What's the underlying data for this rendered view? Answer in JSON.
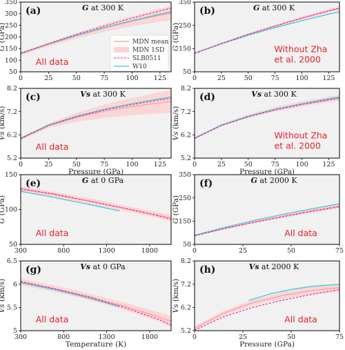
{
  "chart_data": [
    {
      "type": "line",
      "panel_label": "(a)",
      "title_var": "G",
      "title_rest": " at 300 K",
      "ylabel_var": "G",
      "ylabel_unit": " (GPa)",
      "xlabel": "",
      "xlim": [
        0,
        135
      ],
      "ylim": [
        50,
        350
      ],
      "xticks": [
        0,
        25,
        50,
        75,
        100,
        125
      ],
      "yticks": [
        50,
        100,
        150,
        200,
        250,
        300,
        350
      ],
      "annotation": [
        "All data"
      ],
      "series": [
        {
          "name": "MDN mean",
          "x": [
            0,
            25,
            50,
            75,
            100,
            125,
            135
          ],
          "y": [
            128,
            168,
            205,
            239,
            268,
            294,
            302
          ]
        },
        {
          "name": "MDN 1SD",
          "x": [
            0,
            25,
            50,
            75,
            100,
            125,
            135
          ],
          "lower": [
            122,
            160,
            193,
            222,
            246,
            266,
            272
          ],
          "upper": [
            134,
            176,
            217,
            256,
            290,
            322,
            332
          ]
        },
        {
          "name": "SLB0511",
          "x": [
            0,
            25,
            50,
            75,
            100,
            125,
            135
          ],
          "y": [
            129,
            171,
            211,
            247,
            281,
            312,
            324
          ]
        },
        {
          "name": "W10",
          "x": [
            0,
            25,
            50,
            75,
            100,
            125,
            135
          ],
          "y": [
            130,
            170,
            207,
            240,
            270,
            298,
            308
          ]
        }
      ],
      "legend": {
        "entries": [
          "MDN mean",
          "MDN 1SD",
          "SLB0511",
          "W10"
        ],
        "placement": "right"
      }
    },
    {
      "type": "line",
      "panel_label": "(b)",
      "title_var": "G",
      "title_rest": " at 300 K",
      "ylabel_var": "G",
      "ylabel_unit": " (GPa)",
      "xlabel": "",
      "xlim": [
        0,
        135
      ],
      "ylim": [
        50,
        350
      ],
      "xticks": [
        0,
        25,
        50,
        75,
        100,
        125
      ],
      "yticks": [
        50,
        150,
        250,
        350
      ],
      "annotation": [
        "Without Zha",
        "et al. 2000"
      ],
      "series": [
        {
          "name": "MDN mean",
          "x": [
            0,
            25,
            50,
            75,
            100,
            125,
            135
          ],
          "y": [
            130,
            172,
            211,
            247,
            281,
            312,
            323
          ]
        },
        {
          "name": "MDN 1SD",
          "x": [
            0,
            25,
            50,
            75,
            100,
            125,
            135
          ],
          "lower": [
            127,
            168,
            206,
            241,
            274,
            304,
            314
          ],
          "upper": [
            133,
            176,
            216,
            253,
            288,
            320,
            332
          ]
        },
        {
          "name": "SLB0511",
          "x": [
            0,
            25,
            50,
            75,
            100,
            125,
            135
          ],
          "y": [
            129,
            171,
            211,
            247,
            281,
            312,
            324
          ]
        },
        {
          "name": "W10",
          "x": [
            0,
            25,
            50,
            75,
            100,
            125,
            135
          ],
          "y": [
            130,
            170,
            207,
            240,
            270,
            298,
            308
          ]
        }
      ]
    },
    {
      "type": "line",
      "panel_label": "(c)",
      "title_var": "Vs",
      "title_rest": " at 300 K",
      "ylabel_var": "Vs",
      "ylabel_unit": " (km/s)",
      "xlabel": "Pressure (GPa)",
      "xlim": [
        0,
        135
      ],
      "ylim": [
        5.2,
        8.2
      ],
      "xticks": [
        0,
        25,
        50,
        75,
        100,
        125
      ],
      "yticks": [
        5.2,
        6.2,
        7.2,
        8.2
      ],
      "annotation": [
        "All data"
      ],
      "series": [
        {
          "name": "MDN mean",
          "x": [
            0,
            25,
            50,
            75,
            100,
            125,
            135
          ],
          "y": [
            6.02,
            6.6,
            6.95,
            7.22,
            7.42,
            7.58,
            7.64
          ]
        },
        {
          "name": "MDN 1SD",
          "x": [
            0,
            25,
            50,
            75,
            100,
            125,
            135
          ],
          "lower": [
            5.96,
            6.5,
            6.76,
            6.93,
            7.05,
            7.12,
            7.15
          ],
          "upper": [
            6.08,
            6.7,
            7.14,
            7.51,
            7.79,
            8.04,
            8.13
          ]
        },
        {
          "name": "SLB0511",
          "x": [
            0,
            25,
            50,
            75,
            100,
            125,
            135
          ],
          "y": [
            6.05,
            6.6,
            6.98,
            7.27,
            7.5,
            7.7,
            7.77
          ]
        },
        {
          "name": "W10",
          "x": [
            0,
            25,
            50,
            75,
            100,
            125,
            135
          ],
          "y": [
            6.06,
            6.62,
            7.0,
            7.3,
            7.54,
            7.75,
            7.83
          ]
        }
      ]
    },
    {
      "type": "line",
      "panel_label": "(d)",
      "title_var": "Vs",
      "title_rest": " at 300 K",
      "ylabel_var": "Vs",
      "ylabel_unit": " (km/s)",
      "xlabel": "Pressure (GPa)",
      "xlim": [
        0,
        135
      ],
      "ylim": [
        5.2,
        8.2
      ],
      "xticks": [
        0,
        25,
        50,
        75,
        100,
        125
      ],
      "yticks": [
        5.2,
        6.2,
        7.2,
        8.2
      ],
      "annotation": [
        "Without Zha",
        "et al. 2000"
      ],
      "series": [
        {
          "name": "MDN mean",
          "x": [
            0,
            25,
            50,
            75,
            100,
            125,
            135
          ],
          "y": [
            6.05,
            6.62,
            7.0,
            7.3,
            7.53,
            7.72,
            7.79
          ]
        },
        {
          "name": "MDN 1SD",
          "x": [
            0,
            25,
            50,
            75,
            100,
            125,
            135
          ],
          "lower": [
            6.0,
            6.56,
            6.92,
            7.2,
            7.42,
            7.6,
            7.66
          ],
          "upper": [
            6.1,
            6.68,
            7.08,
            7.4,
            7.64,
            7.84,
            7.92
          ]
        },
        {
          "name": "SLB0511",
          "x": [
            0,
            25,
            50,
            75,
            100,
            125,
            135
          ],
          "y": [
            6.05,
            6.6,
            6.98,
            7.27,
            7.5,
            7.7,
            7.77
          ]
        },
        {
          "name": "W10",
          "x": [
            0,
            25,
            50,
            75,
            100,
            125,
            135
          ],
          "y": [
            6.06,
            6.62,
            7.0,
            7.3,
            7.54,
            7.75,
            7.83
          ]
        }
      ]
    },
    {
      "type": "line",
      "panel_label": "(e)",
      "title_var": "G",
      "title_rest": " at 0 GPa",
      "ylabel_var": "G",
      "ylabel_unit": " (GPa)",
      "xlabel": "",
      "xlim": [
        300,
        2050
      ],
      "ylim": [
        50,
        150
      ],
      "xticks": [
        300,
        800,
        1300,
        1800
      ],
      "yticks": [
        50,
        100,
        150
      ],
      "annotation": [
        "All data"
      ],
      "series": [
        {
          "name": "MDN mean",
          "x": [
            300,
            700,
            1100,
            1500,
            1900,
            2050
          ],
          "y": [
            129,
            121,
            112,
            102,
            92,
            88
          ]
        },
        {
          "name": "MDN 1SD",
          "x": [
            300,
            700,
            1100,
            1500,
            1900,
            2050
          ],
          "lower": [
            125,
            117,
            108,
            98,
            88,
            84
          ],
          "upper": [
            133,
            125,
            116,
            106,
            96,
            92
          ]
        },
        {
          "name": "SLB0511",
          "x": [
            300,
            700,
            1100,
            1500,
            1900,
            2050
          ],
          "y": [
            130,
            122,
            112,
            102,
            91,
            86
          ]
        },
        {
          "name": "W10",
          "x": [
            300,
            700,
            1100,
            1450
          ],
          "y": [
            126,
            117,
            107,
            98
          ]
        }
      ]
    },
    {
      "type": "line",
      "panel_label": "(f)",
      "title_var": "G",
      "title_rest": " at 2000 K",
      "ylabel_var": "G",
      "ylabel_unit": " (GPa)",
      "xlabel": "",
      "xlim": [
        0,
        75
      ],
      "ylim": [
        50,
        350
      ],
      "xticks": [
        0,
        25,
        50,
        75
      ],
      "yticks": [
        50,
        150,
        250,
        350
      ],
      "annotation": [
        "All data"
      ],
      "series": [
        {
          "name": "MDN mean",
          "x": [
            0,
            15,
            30,
            45,
            60,
            75
          ],
          "y": [
            88,
            118,
            145,
            170,
            194,
            215
          ]
        },
        {
          "name": "MDN 1SD",
          "x": [
            0,
            15,
            30,
            45,
            60,
            75
          ],
          "lower": [
            84,
            113,
            139,
            163,
            186,
            206
          ],
          "upper": [
            92,
            123,
            151,
            177,
            202,
            224
          ]
        },
        {
          "name": "SLB0511",
          "x": [
            0,
            15,
            30,
            45,
            60,
            75
          ],
          "y": [
            87,
            117,
            144,
            168,
            191,
            212
          ]
        },
        {
          "name": "W10",
          "x": [
            0,
            15,
            30,
            45,
            60,
            75
          ],
          "y": [
            89,
            122,
            152,
            178,
            202,
            225
          ]
        }
      ]
    },
    {
      "type": "line",
      "panel_label": "(g)",
      "title_var": "Vs",
      "title_rest": " at 0 GPa",
      "ylabel_var": "Vs",
      "ylabel_unit": " (km/s)",
      "xlabel": "Temperature (K)",
      "xlim": [
        300,
        2050
      ],
      "ylim": [
        5.0,
        6.5
      ],
      "xticks": [
        300,
        800,
        1300,
        1800
      ],
      "yticks": [
        5.0,
        5.5,
        6.0,
        6.5
      ],
      "annotation": [
        "All data"
      ],
      "series": [
        {
          "name": "MDN mean",
          "x": [
            300,
            700,
            1100,
            1500,
            1900,
            2050
          ],
          "y": [
            6.05,
            5.9,
            5.73,
            5.53,
            5.3,
            5.2
          ]
        },
        {
          "name": "MDN 1SD",
          "x": [
            300,
            700,
            1100,
            1500,
            1900,
            2050
          ],
          "lower": [
            5.98,
            5.83,
            5.66,
            5.45,
            5.2,
            5.08
          ],
          "upper": [
            6.12,
            5.97,
            5.8,
            5.61,
            5.4,
            5.32
          ]
        },
        {
          "name": "SLB0511",
          "x": [
            300,
            700,
            1100,
            1500,
            1900,
            2050
          ],
          "y": [
            6.06,
            5.9,
            5.72,
            5.5,
            5.25,
            5.12
          ]
        },
        {
          "name": "W10",
          "x": [
            300,
            700,
            1100,
            1450
          ],
          "y": [
            6.03,
            5.88,
            5.7,
            5.52
          ]
        }
      ]
    },
    {
      "type": "line",
      "panel_label": "(h)",
      "title_var": "Vs",
      "title_rest": " at 2000 K",
      "ylabel_var": "Vs",
      "ylabel_unit": " (km/s)",
      "xlabel": "Pressure (GPa)",
      "xlim": [
        0,
        75
      ],
      "ylim": [
        5.2,
        8.2
      ],
      "xticks": [
        0,
        25,
        50,
        75
      ],
      "yticks": [
        5.2,
        6.2,
        7.2,
        8.2
      ],
      "annotation": [
        "All data"
      ],
      "series": [
        {
          "name": "MDN mean",
          "x": [
            0,
            15,
            30,
            45,
            60,
            75
          ],
          "y": [
            5.3,
            5.95,
            6.4,
            6.7,
            6.92,
            7.05
          ]
        },
        {
          "name": "MDN 1SD",
          "x": [
            0,
            15,
            30,
            45,
            60,
            75
          ],
          "lower": [
            5.22,
            5.85,
            6.28,
            6.56,
            6.76,
            6.88
          ],
          "upper": [
            5.38,
            6.05,
            6.52,
            6.84,
            7.08,
            7.22
          ]
        },
        {
          "name": "SLB0511",
          "x": [
            0,
            15,
            30,
            45,
            60,
            75
          ],
          "y": [
            5.22,
            5.8,
            6.2,
            6.5,
            6.75,
            6.97
          ]
        },
        {
          "name": "W10",
          "x": [
            28,
            40,
            50,
            60,
            75
          ],
          "y": [
            6.5,
            6.8,
            6.97,
            7.1,
            7.2
          ]
        }
      ]
    }
  ],
  "colors": {
    "mdn_mean": "#f5a0a6",
    "mdn_band": "#fcd3d3",
    "slb0511": "#e0209a",
    "w10": "#2ec8dc",
    "panel_bg": "#f1f1f1",
    "annotation": "#e8202a"
  }
}
